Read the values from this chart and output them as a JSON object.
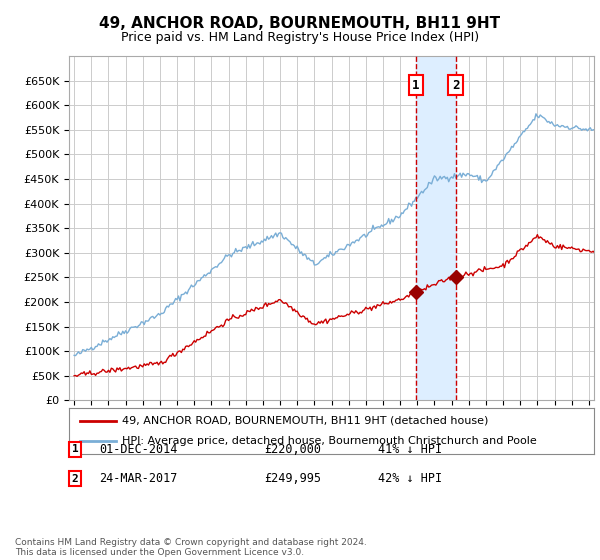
{
  "title": "49, ANCHOR ROAD, BOURNEMOUTH, BH11 9HT",
  "subtitle": "Price paid vs. HM Land Registry's House Price Index (HPI)",
  "legend_line1": "49, ANCHOR ROAD, BOURNEMOUTH, BH11 9HT (detached house)",
  "legend_line2": "HPI: Average price, detached house, Bournemouth Christchurch and Poole",
  "transaction1_label": "1",
  "transaction1_date": "01-DEC-2014",
  "transaction1_price": "£220,000",
  "transaction1_pct": "41% ↓ HPI",
  "transaction2_label": "2",
  "transaction2_date": "24-MAR-2017",
  "transaction2_price": "£249,995",
  "transaction2_pct": "42% ↓ HPI",
  "footer": "Contains HM Land Registry data © Crown copyright and database right 2024.\nThis data is licensed under the Open Government Licence v3.0.",
  "hpi_color": "#7aaed6",
  "price_color": "#cc0000",
  "marker_color": "#990000",
  "vline_color": "#cc0000",
  "shade_color": "#ddeeff",
  "background_color": "#ffffff",
  "grid_color": "#cccccc",
  "ylim": [
    0,
    700000
  ],
  "yticks": [
    0,
    50000,
    100000,
    150000,
    200000,
    250000,
    300000,
    350000,
    400000,
    450000,
    500000,
    550000,
    600000,
    650000
  ],
  "year_start": 1995,
  "year_end": 2025,
  "transaction1_year": 2014.92,
  "transaction2_year": 2017.23,
  "transaction1_value": 220000,
  "transaction2_value": 249995
}
